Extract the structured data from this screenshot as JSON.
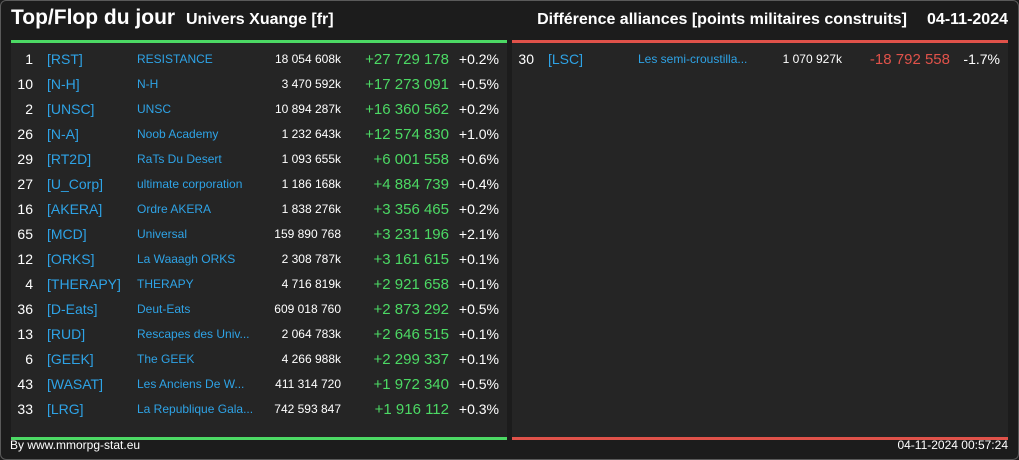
{
  "header": {
    "title": "Top/Flop du jour",
    "universe": "Univers Xuange [fr]",
    "metric": "Différence alliances [points militaires construits]",
    "date": "04-11-2024"
  },
  "colors": {
    "accent_top": "#4cd964",
    "accent_flop": "#e0524a",
    "link": "#2ea3e6"
  },
  "top": [
    {
      "rank": "1",
      "tag": "[RST]",
      "name": "RESISTANCE",
      "points": "18 054 608k",
      "diff": "+27 729 178",
      "pct": "+0.2%"
    },
    {
      "rank": "10",
      "tag": "[N-H]",
      "name": "N-H",
      "points": "3 470 592k",
      "diff": "+17 273 091",
      "pct": "+0.5%"
    },
    {
      "rank": "2",
      "tag": "[UNSC]",
      "name": "UNSC",
      "points": "10 894 287k",
      "diff": "+16 360 562",
      "pct": "+0.2%"
    },
    {
      "rank": "26",
      "tag": "[N-A]",
      "name": "Noob Academy",
      "points": "1 232 643k",
      "diff": "+12 574 830",
      "pct": "+1.0%"
    },
    {
      "rank": "29",
      "tag": "[RT2D]",
      "name": "RaTs Du Desert",
      "points": "1 093 655k",
      "diff": "+6 001 558",
      "pct": "+0.6%"
    },
    {
      "rank": "27",
      "tag": "[U_Corp]",
      "name": "ultimate corporation",
      "points": "1 186 168k",
      "diff": "+4 884 739",
      "pct": "+0.4%"
    },
    {
      "rank": "16",
      "tag": "[AKERA]",
      "name": "Ordre AKERA",
      "points": "1 838 276k",
      "diff": "+3 356 465",
      "pct": "+0.2%"
    },
    {
      "rank": "65",
      "tag": "[MCD]",
      "name": "Universal",
      "points": "159 890 768",
      "diff": "+3 231 196",
      "pct": "+2.1%"
    },
    {
      "rank": "12",
      "tag": "[ORKS]",
      "name": "La Waaagh ORKS",
      "points": "2 308 787k",
      "diff": "+3 161 615",
      "pct": "+0.1%"
    },
    {
      "rank": "4",
      "tag": "[THERAPY]",
      "name": "THERAPY",
      "points": "4 716 819k",
      "diff": "+2 921 658",
      "pct": "+0.1%"
    },
    {
      "rank": "36",
      "tag": "[D-Eats]",
      "name": "Deut-Eats",
      "points": "609 018 760",
      "diff": "+2 873 292",
      "pct": "+0.5%"
    },
    {
      "rank": "13",
      "tag": "[RUD]",
      "name": "Rescapes des Univ...",
      "points": "2 064 783k",
      "diff": "+2 646 515",
      "pct": "+0.1%"
    },
    {
      "rank": "6",
      "tag": "[GEEK]",
      "name": "The GEEK",
      "points": "4 266 988k",
      "diff": "+2 299 337",
      "pct": "+0.1%"
    },
    {
      "rank": "43",
      "tag": "[WASAT]",
      "name": "Les Anciens De W...",
      "points": "411 314 720",
      "diff": "+1 972 340",
      "pct": "+0.5%"
    },
    {
      "rank": "33",
      "tag": "[LRG]",
      "name": "La Republique Gala...",
      "points": "742 593 847",
      "diff": "+1 916 112",
      "pct": "+0.3%"
    }
  ],
  "flop": [
    {
      "rank": "30",
      "tag": "[LSC]",
      "name": "Les semi-croustilla...",
      "points": "1 070 927k",
      "diff": "-18 792 558",
      "pct": "-1.7%"
    }
  ],
  "footer": {
    "credit": "By www.mmorpg-stat.eu",
    "timestamp": "04-11-2024 00:57:24"
  }
}
